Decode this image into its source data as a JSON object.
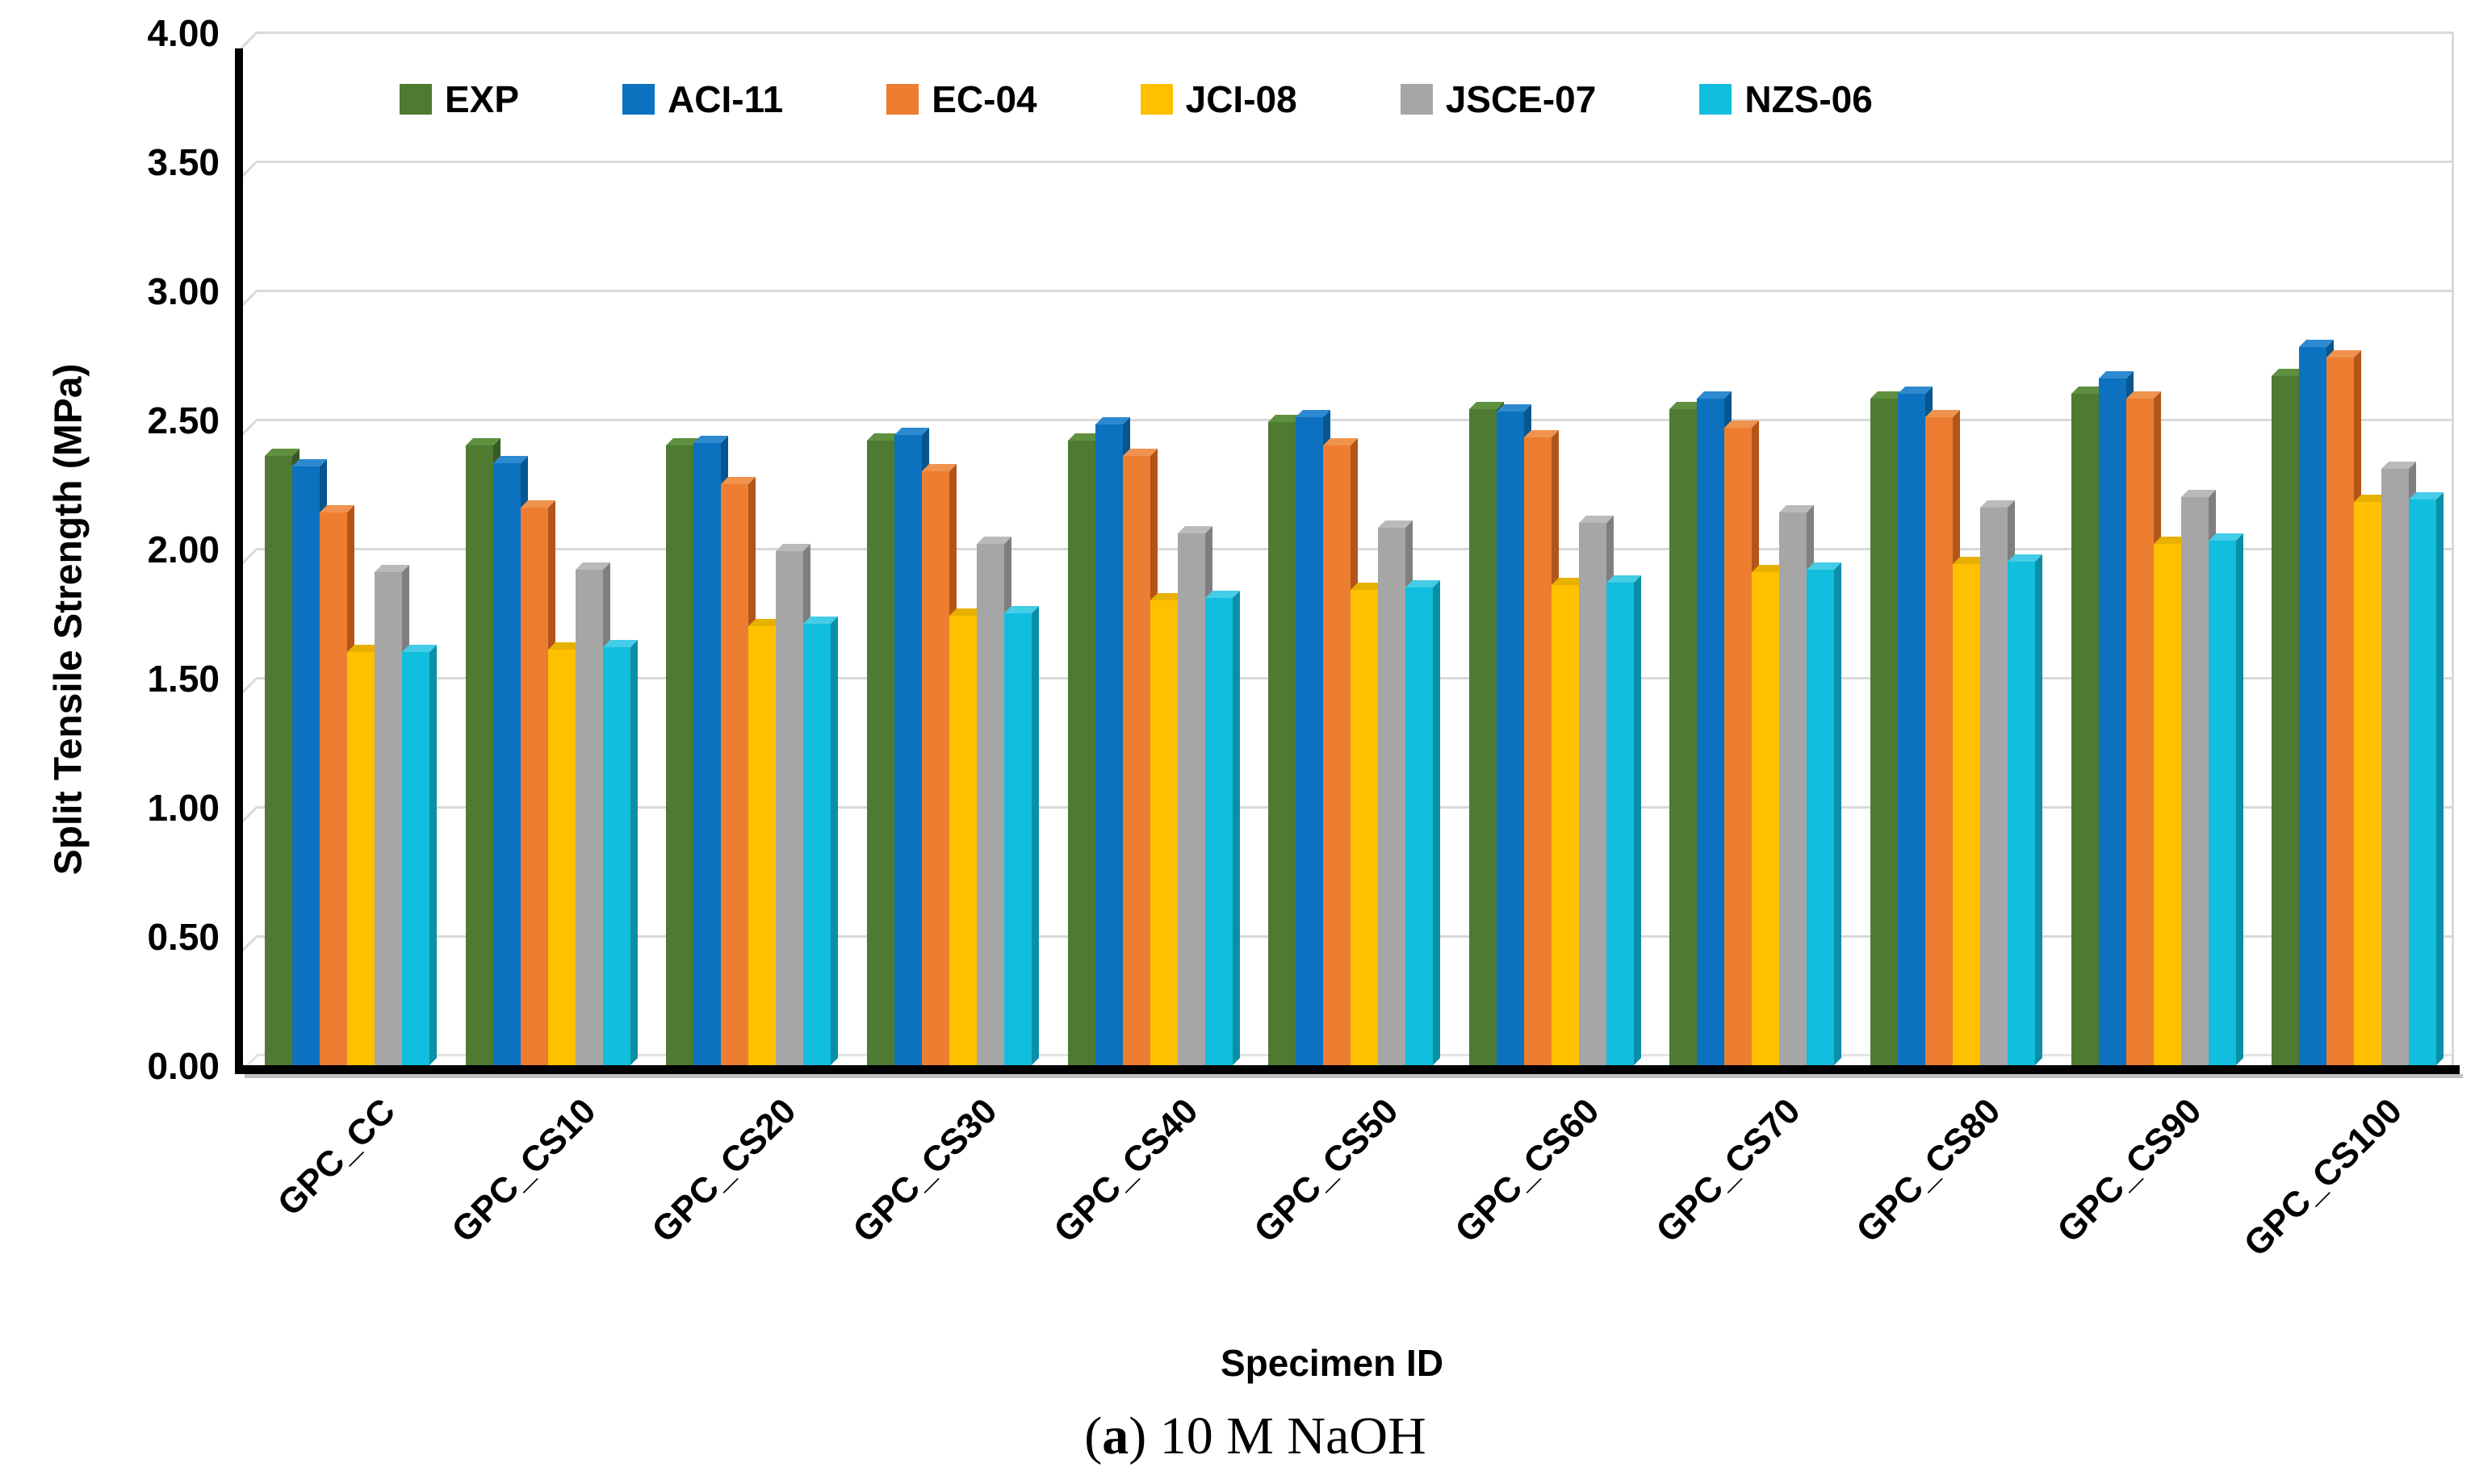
{
  "axes": {
    "y_title": "Split Tensile Strength (MPa)",
    "x_title": "Specimen ID",
    "y_tick_labels": [
      "0.00",
      "0.50",
      "1.00",
      "1.50",
      "2.00",
      "2.50",
      "3.00",
      "3.50",
      "4.00"
    ]
  },
  "caption": {
    "open": "(",
    "letter": "a",
    "rest": ") 10 M NaOH"
  },
  "colors": {
    "gridline": "#d9d9d9",
    "axis": "#000000",
    "background": "#ffffff"
  },
  "chart_data": {
    "type": "bar",
    "title": "",
    "xlabel": "Specimen ID",
    "ylabel": "Split Tensile Strength (MPa)",
    "ylim": [
      0,
      4
    ],
    "ytick_step": 0.5,
    "grid": true,
    "legend_position": "top-inside",
    "categories": [
      "GPC_CC",
      "GPC_CS10",
      "GPC_CS20",
      "GPC_CS30",
      "GPC_CS40",
      "GPC_CS50",
      "GPC_CS60",
      "GPC_CS70",
      "GPC_CS80",
      "GPC_CS90",
      "GPC_CS100"
    ],
    "series": [
      {
        "name": "EXP",
        "color": "#4e7b31",
        "top": "#5e9040",
        "side": "#395a24",
        "values": [
          2.36,
          2.4,
          2.4,
          2.42,
          2.42,
          2.49,
          2.54,
          2.54,
          2.58,
          2.6,
          2.67
        ]
      },
      {
        "name": "ACI-11",
        "color": "#0c72c0",
        "top": "#2e8ad0",
        "side": "#07568f",
        "values": [
          2.32,
          2.33,
          2.41,
          2.44,
          2.48,
          2.51,
          2.53,
          2.58,
          2.6,
          2.66,
          2.78
        ]
      },
      {
        "name": "EC-04",
        "color": "#ed7d31",
        "top": "#f0934f",
        "side": "#b35519",
        "values": [
          2.14,
          2.16,
          2.25,
          2.3,
          2.36,
          2.4,
          2.43,
          2.47,
          2.51,
          2.58,
          2.74
        ]
      },
      {
        "name": "JCI-08",
        "color": "#ffc000",
        "top": "#e8b000",
        "side": "#bf9000",
        "values": [
          1.6,
          1.61,
          1.7,
          1.74,
          1.8,
          1.84,
          1.86,
          1.91,
          1.94,
          2.02,
          2.18
        ]
      },
      {
        "name": "JSCE-07",
        "color": "#a6a6a6",
        "top": "#bababa",
        "side": "#7f7f7f",
        "values": [
          1.91,
          1.92,
          1.99,
          2.02,
          2.06,
          2.08,
          2.1,
          2.14,
          2.16,
          2.2,
          2.31
        ]
      },
      {
        "name": "NZS-06",
        "color": "#12bede",
        "top": "#45cce6",
        "side": "#0b8fa6",
        "values": [
          1.6,
          1.62,
          1.71,
          1.75,
          1.81,
          1.85,
          1.87,
          1.92,
          1.95,
          2.03,
          2.19
        ]
      }
    ]
  }
}
